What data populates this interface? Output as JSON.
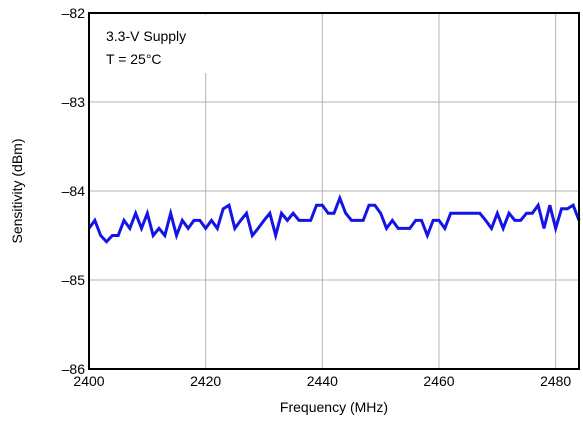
{
  "chart_data": {
    "type": "line",
    "xlabel": "Frequency (MHz)",
    "ylabel": "Sensitivity (dBm)",
    "xlim": [
      2400,
      2484
    ],
    "ylim": [
      -86,
      -82
    ],
    "x_ticks": [
      2400,
      2420,
      2440,
      2460,
      2480
    ],
    "x_tick_labels": [
      "2400",
      "2420",
      "2440",
      "2460",
      "2480"
    ],
    "y_ticks": [
      -86,
      -85,
      -84,
      -83,
      -82
    ],
    "y_tick_labels": [
      "–86",
      "–85",
      "–84",
      "–83",
      "–82"
    ],
    "grid": true,
    "annotation_lines": [
      "3.3-V Supply",
      "T = 25°C"
    ],
    "series": [
      {
        "color": "#1414e6",
        "x": [
          2400,
          2401,
          2402,
          2403,
          2404,
          2405,
          2406,
          2407,
          2408,
          2409,
          2410,
          2411,
          2412,
          2413,
          2414,
          2415,
          2416,
          2417,
          2418,
          2419,
          2420,
          2421,
          2422,
          2423,
          2424,
          2425,
          2426,
          2427,
          2428,
          2429,
          2430,
          2431,
          2432,
          2433,
          2434,
          2435,
          2436,
          2437,
          2438,
          2439,
          2440,
          2441,
          2442,
          2443,
          2444,
          2445,
          2446,
          2447,
          2448,
          2449,
          2450,
          2451,
          2452,
          2453,
          2454,
          2455,
          2456,
          2457,
          2458,
          2459,
          2460,
          2461,
          2462,
          2463,
          2464,
          2465,
          2466,
          2467,
          2468,
          2469,
          2470,
          2471,
          2472,
          2473,
          2474,
          2475,
          2476,
          2477,
          2478,
          2479,
          2480,
          2481,
          2482,
          2483,
          2484
        ],
        "values": [
          -84.42,
          -84.33,
          -84.5,
          -84.57,
          -84.5,
          -84.5,
          -84.33,
          -84.42,
          -84.25,
          -84.42,
          -84.25,
          -84.5,
          -84.42,
          -84.5,
          -84.25,
          -84.5,
          -84.33,
          -84.42,
          -84.33,
          -84.33,
          -84.42,
          -84.33,
          -84.42,
          -84.2,
          -84.16,
          -84.42,
          -84.33,
          -84.25,
          -84.5,
          -84.42,
          -84.33,
          -84.25,
          -84.5,
          -84.25,
          -84.33,
          -84.25,
          -84.33,
          -84.33,
          -84.33,
          -84.16,
          -84.16,
          -84.25,
          -84.25,
          -84.08,
          -84.25,
          -84.33,
          -84.33,
          -84.33,
          -84.16,
          -84.16,
          -84.25,
          -84.42,
          -84.33,
          -84.42,
          -84.42,
          -84.42,
          -84.33,
          -84.33,
          -84.5,
          -84.33,
          -84.33,
          -84.42,
          -84.25,
          -84.25,
          -84.25,
          -84.25,
          -84.25,
          -84.25,
          -84.33,
          -84.42,
          -84.25,
          -84.42,
          -84.25,
          -84.33,
          -84.33,
          -84.25,
          -84.25,
          -84.16,
          -84.42,
          -84.16,
          -84.42,
          -84.2,
          -84.2,
          -84.16,
          -84.33
        ]
      }
    ]
  }
}
